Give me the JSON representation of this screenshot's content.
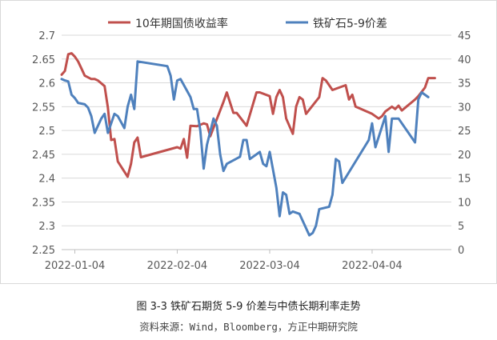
{
  "chart_data": {
    "type": "line",
    "title": "",
    "xlabel": "",
    "ylabel": "",
    "x_ticks": [
      "2022-01-04",
      "2022-02-04",
      "2022-03-04",
      "2022-04-04"
    ],
    "x_range": [
      "2021-12-31",
      "2022-04-28"
    ],
    "left_axis": {
      "min": 2.25,
      "max": 2.7,
      "step": 0.05,
      "ticks": [
        "2.25",
        "2.3",
        "2.35",
        "2.4",
        "2.45",
        "2.5",
        "2.55",
        "2.6",
        "2.65",
        "2.7"
      ]
    },
    "right_axis": {
      "min": 0,
      "max": 45,
      "step": 5,
      "ticks": [
        "0",
        "5",
        "10",
        "15",
        "20",
        "25",
        "30",
        "35",
        "40",
        "45"
      ]
    },
    "grid": true,
    "legend_position": "top",
    "series": [
      {
        "name": "10年期国债收益率",
        "axis": "left",
        "color": "#c0504d",
        "points": [
          [
            "2021-12-31",
            2.617
          ],
          [
            "2022-01-01",
            2.625
          ],
          [
            "2022-01-02",
            2.66
          ],
          [
            "2022-01-03",
            2.662
          ],
          [
            "2022-01-04",
            2.655
          ],
          [
            "2022-01-05",
            2.645
          ],
          [
            "2022-01-06",
            2.63
          ],
          [
            "2022-01-07",
            2.615
          ],
          [
            "2022-01-09",
            2.608
          ],
          [
            "2022-01-10",
            2.608
          ],
          [
            "2022-01-11",
            2.605
          ],
          [
            "2022-01-13",
            2.593
          ],
          [
            "2022-01-14",
            2.548
          ],
          [
            "2022-01-15",
            2.48
          ],
          [
            "2022-01-16",
            2.482
          ],
          [
            "2022-01-17",
            2.435
          ],
          [
            "2022-01-20",
            2.403
          ],
          [
            "2022-01-21",
            2.43
          ],
          [
            "2022-01-22",
            2.475
          ],
          [
            "2022-01-23",
            2.485
          ],
          [
            "2022-01-24",
            2.444
          ],
          [
            "2022-02-04",
            2.465
          ],
          [
            "2022-02-05",
            2.462
          ],
          [
            "2022-02-06",
            2.482
          ],
          [
            "2022-02-07",
            2.443
          ],
          [
            "2022-02-08",
            2.51
          ],
          [
            "2022-02-10",
            2.509
          ],
          [
            "2022-02-12",
            2.515
          ],
          [
            "2022-02-13",
            2.513
          ],
          [
            "2022-02-14",
            2.488
          ],
          [
            "2022-02-18",
            2.56
          ],
          [
            "2022-02-19",
            2.58
          ],
          [
            "2022-02-21",
            2.537
          ],
          [
            "2022-02-22",
            2.537
          ],
          [
            "2022-02-25",
            2.51
          ],
          [
            "2022-02-28",
            2.58
          ],
          [
            "2022-03-01",
            2.58
          ],
          [
            "2022-03-04",
            2.572
          ],
          [
            "2022-03-05",
            2.535
          ],
          [
            "2022-03-06",
            2.57
          ],
          [
            "2022-03-07",
            2.585
          ],
          [
            "2022-03-08",
            2.57
          ],
          [
            "2022-03-09",
            2.525
          ],
          [
            "2022-03-11",
            2.493
          ],
          [
            "2022-03-12",
            2.55
          ],
          [
            "2022-03-13",
            2.57
          ],
          [
            "2022-03-14",
            2.565
          ],
          [
            "2022-03-15",
            2.535
          ],
          [
            "2022-03-19",
            2.57
          ],
          [
            "2022-03-20",
            2.61
          ],
          [
            "2022-03-21",
            2.605
          ],
          [
            "2022-03-22",
            2.595
          ],
          [
            "2022-03-23",
            2.585
          ],
          [
            "2022-03-27",
            2.595
          ],
          [
            "2022-03-28",
            2.565
          ],
          [
            "2022-03-29",
            2.575
          ],
          [
            "2022-03-30",
            2.55
          ],
          [
            "2022-04-04",
            2.535
          ],
          [
            "2022-04-06",
            2.525
          ],
          [
            "2022-04-07",
            2.53
          ],
          [
            "2022-04-08",
            2.54
          ],
          [
            "2022-04-10",
            2.55
          ],
          [
            "2022-04-11",
            2.545
          ],
          [
            "2022-04-12",
            2.552
          ],
          [
            "2022-04-13",
            2.542
          ],
          [
            "2022-04-17",
            2.565
          ],
          [
            "2022-04-18",
            2.572
          ],
          [
            "2022-04-20",
            2.59
          ],
          [
            "2022-04-21",
            2.61
          ],
          [
            "2022-04-23",
            2.61
          ]
        ]
      },
      {
        "name": "铁矿石5-9价差",
        "axis": "right",
        "color": "#4f81bd",
        "points": [
          [
            "2021-12-31",
            35.8
          ],
          [
            "2022-01-01",
            35.5
          ],
          [
            "2022-01-02",
            35.3
          ],
          [
            "2022-01-03",
            32.5
          ],
          [
            "2022-01-04",
            31.8
          ],
          [
            "2022-01-05",
            30.8
          ],
          [
            "2022-01-07",
            30.5
          ],
          [
            "2022-01-08",
            29.8
          ],
          [
            "2022-01-09",
            28.0
          ],
          [
            "2022-01-10",
            24.5
          ],
          [
            "2022-01-12",
            27.5
          ],
          [
            "2022-01-13",
            28.5
          ],
          [
            "2022-01-14",
            24.5
          ],
          [
            "2022-01-16",
            28.5
          ],
          [
            "2022-01-17",
            28.0
          ],
          [
            "2022-01-19",
            25.5
          ],
          [
            "2022-01-20",
            30.0
          ],
          [
            "2022-01-21",
            32.5
          ],
          [
            "2022-01-22",
            29.5
          ],
          [
            "2022-01-23",
            39.5
          ],
          [
            "2022-02-01",
            38.5
          ],
          [
            "2022-02-02",
            36.5
          ],
          [
            "2022-02-03",
            31.5
          ],
          [
            "2022-02-04",
            35.5
          ],
          [
            "2022-02-05",
            35.8
          ],
          [
            "2022-02-08",
            32.0
          ],
          [
            "2022-02-09",
            29.5
          ],
          [
            "2022-02-10",
            29.5
          ],
          [
            "2022-02-11",
            25.0
          ],
          [
            "2022-02-12",
            17.0
          ],
          [
            "2022-02-13",
            22.0
          ],
          [
            "2022-02-15",
            27.5
          ],
          [
            "2022-02-16",
            26.0
          ],
          [
            "2022-02-17",
            20.0
          ],
          [
            "2022-02-18",
            16.5
          ],
          [
            "2022-02-19",
            18.0
          ],
          [
            "2022-02-23",
            19.5
          ],
          [
            "2022-02-24",
            23.0
          ],
          [
            "2022-02-25",
            23.0
          ],
          [
            "2022-02-26",
            19.0
          ],
          [
            "2022-02-28",
            20.0
          ],
          [
            "2022-03-01",
            20.5
          ],
          [
            "2022-03-02",
            18.0
          ],
          [
            "2022-03-03",
            17.5
          ],
          [
            "2022-03-04",
            20.5
          ],
          [
            "2022-03-06",
            13.0
          ],
          [
            "2022-03-07",
            7.0
          ],
          [
            "2022-03-08",
            12.0
          ],
          [
            "2022-03-09",
            11.5
          ],
          [
            "2022-03-10",
            7.5
          ],
          [
            "2022-03-11",
            8.0
          ],
          [
            "2022-03-13",
            7.5
          ],
          [
            "2022-03-16",
            3.0
          ],
          [
            "2022-03-17",
            3.5
          ],
          [
            "2022-03-18",
            5.0
          ],
          [
            "2022-03-19",
            8.5
          ],
          [
            "2022-03-22",
            9.0
          ],
          [
            "2022-03-23",
            11.5
          ],
          [
            "2022-03-24",
            19.0
          ],
          [
            "2022-03-25",
            18.5
          ],
          [
            "2022-03-26",
            14.0
          ],
          [
            "2022-04-03",
            23.0
          ],
          [
            "2022-04-04",
            26.5
          ],
          [
            "2022-04-05",
            21.5
          ],
          [
            "2022-04-08",
            28.0
          ],
          [
            "2022-04-09",
            20.5
          ],
          [
            "2022-04-10",
            27.5
          ],
          [
            "2022-04-12",
            27.5
          ],
          [
            "2022-04-17",
            22.5
          ],
          [
            "2022-04-18",
            31.5
          ],
          [
            "2022-04-19",
            33.0
          ],
          [
            "2022-04-21",
            32.0
          ]
        ]
      }
    ]
  },
  "caption": {
    "title": "图 3-3 铁矿石期货 5-9 价差与中债长期利率走势",
    "source": "资料来源：Wind，Bloomberg，方正中期研究院"
  },
  "colors": {
    "grid": "#d9d9d9",
    "axis_text": "#595959",
    "frame": "#d9d9d9"
  }
}
